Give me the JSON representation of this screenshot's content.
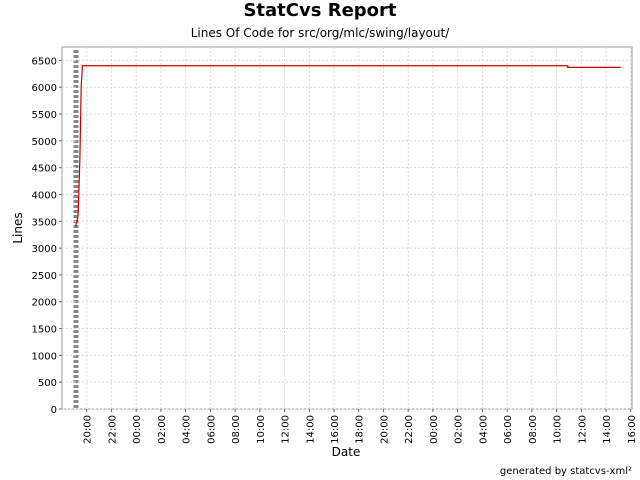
{
  "chart_data": {
    "type": "line",
    "title": "StatCvs Report",
    "subtitle": "Lines Of Code for src/org/mlc/swing/layout/",
    "x_label": "Date",
    "y_label": "Lines",
    "footer": "generated by statcvs-xml²",
    "x": [
      19.1,
      19.3,
      19.45,
      19.55,
      19.65,
      58.9,
      58.9,
      63.2
    ],
    "series": [
      {
        "name": "Lines",
        "color": "#cc0000",
        "values": [
          3400,
          3600,
          4700,
          6000,
          6400,
          6400,
          6370,
          6370
        ]
      }
    ],
    "xlim": [
      18,
      64.1
    ],
    "ylim": [
      0,
      6750
    ],
    "xticks": [
      {
        "value": 20,
        "label": "20:00"
      },
      {
        "value": 22,
        "label": "22:00"
      },
      {
        "value": 24,
        "label": "00:00"
      },
      {
        "value": 26,
        "label": "02:00"
      },
      {
        "value": 28,
        "label": "04:00"
      },
      {
        "value": 30,
        "label": "06:00"
      },
      {
        "value": 32,
        "label": "08:00"
      },
      {
        "value": 34,
        "label": "10:00"
      },
      {
        "value": 36,
        "label": "12:00"
      },
      {
        "value": 38,
        "label": "14:00"
      },
      {
        "value": 40,
        "label": "16:00"
      },
      {
        "value": 42,
        "label": "18:00"
      },
      {
        "value": 44,
        "label": "20:00"
      },
      {
        "value": 46,
        "label": "22:00"
      },
      {
        "value": 48,
        "label": "00:00"
      },
      {
        "value": 50,
        "label": "02:00"
      },
      {
        "value": 52,
        "label": "04:00"
      },
      {
        "value": 54,
        "label": "06:00"
      },
      {
        "value": 56,
        "label": "08:00"
      },
      {
        "value": 58,
        "label": "10:00"
      },
      {
        "value": 60,
        "label": "12:00"
      },
      {
        "value": 62,
        "label": "14:00"
      },
      {
        "value": 64,
        "label": "16:00"
      }
    ],
    "yticks": [
      0,
      500,
      1000,
      1500,
      2000,
      2500,
      3000,
      3500,
      4000,
      4500,
      5000,
      5500,
      6000,
      6500
    ],
    "grid": true
  }
}
